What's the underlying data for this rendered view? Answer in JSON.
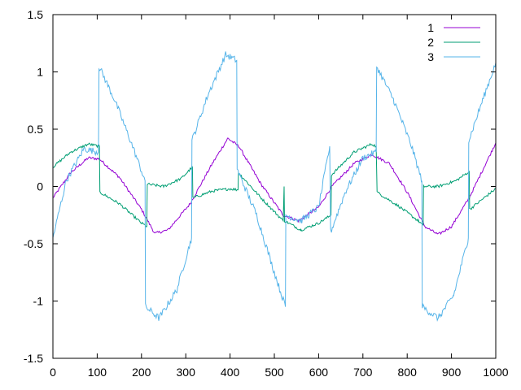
{
  "chart_data": {
    "type": "line",
    "xlim": [
      0,
      1000
    ],
    "ylim": [
      -1.5,
      1.5
    ],
    "x_ticks": [
      "0",
      "100",
      "200",
      "300",
      "400",
      "500",
      "600",
      "700",
      "800",
      "900",
      "1000"
    ],
    "y_ticks": [
      "-1.5",
      "-1",
      "-0.5",
      "0",
      "0.5",
      "1",
      "1.5"
    ],
    "x_tick_values": [
      0,
      100,
      200,
      300,
      400,
      500,
      600,
      700,
      800,
      900,
      1000
    ],
    "y_tick_values": [
      -1.5,
      -1,
      -0.5,
      0,
      0.5,
      1,
      1.5
    ],
    "grid": false,
    "legend_position": "top-right",
    "series": [
      {
        "name": "1",
        "color": "#9400d3",
        "points": [
          [
            0,
            -0.1
          ],
          [
            40,
            0.12
          ],
          [
            80,
            0.25
          ],
          [
            105,
            0.24
          ],
          [
            150,
            0.08
          ],
          [
            200,
            -0.2
          ],
          [
            230,
            -0.41
          ],
          [
            260,
            -0.38
          ],
          [
            310,
            -0.15
          ],
          [
            360,
            0.2
          ],
          [
            395,
            0.42
          ],
          [
            420,
            0.35
          ],
          [
            470,
            0.02
          ],
          [
            520,
            -0.25
          ],
          [
            555,
            -0.3
          ],
          [
            600,
            -0.18
          ],
          [
            630,
            0.0
          ],
          [
            680,
            0.2
          ],
          [
            720,
            0.28
          ],
          [
            760,
            0.2
          ],
          [
            800,
            -0.05
          ],
          [
            840,
            -0.35
          ],
          [
            870,
            -0.42
          ],
          [
            900,
            -0.35
          ],
          [
            940,
            -0.1
          ],
          [
            980,
            0.22
          ],
          [
            1000,
            0.38
          ]
        ]
      },
      {
        "name": "2",
        "color": "#009e73",
        "points": [
          [
            0,
            0.17
          ],
          [
            40,
            0.3
          ],
          [
            80,
            0.37
          ],
          [
            105,
            0.35
          ],
          [
            106,
            -0.05
          ],
          [
            150,
            -0.15
          ],
          [
            200,
            -0.32
          ],
          [
            212,
            -0.35
          ],
          [
            213,
            0.02
          ],
          [
            250,
            0.0
          ],
          [
            290,
            0.07
          ],
          [
            315,
            0.17
          ],
          [
            316,
            -0.1
          ],
          [
            360,
            -0.04
          ],
          [
            400,
            -0.02
          ],
          [
            418,
            -0.03
          ],
          [
            419,
            0.12
          ],
          [
            470,
            -0.1
          ],
          [
            520,
            -0.3
          ],
          [
            522,
            0.0
          ],
          [
            523,
            -0.3
          ],
          [
            560,
            -0.38
          ],
          [
            600,
            -0.32
          ],
          [
            628,
            -0.25
          ],
          [
            629,
            0.1
          ],
          [
            680,
            0.3
          ],
          [
            720,
            0.37
          ],
          [
            730,
            0.35
          ],
          [
            732,
            -0.05
          ],
          [
            780,
            -0.17
          ],
          [
            825,
            -0.3
          ],
          [
            836,
            -0.34
          ],
          [
            837,
            -0.0
          ],
          [
            870,
            0.0
          ],
          [
            910,
            0.05
          ],
          [
            940,
            0.13
          ],
          [
            941,
            -0.2
          ],
          [
            980,
            -0.08
          ],
          [
            1000,
            -0.02
          ]
        ]
      },
      {
        "name": "3",
        "color": "#56b4e9",
        "points": [
          [
            0,
            -0.45
          ],
          [
            30,
            0.05
          ],
          [
            70,
            0.33
          ],
          [
            103,
            0.3
          ],
          [
            104,
            1.05
          ],
          [
            140,
            0.75
          ],
          [
            180,
            0.35
          ],
          [
            208,
            0.05
          ],
          [
            209,
            -1.05
          ],
          [
            240,
            -1.15
          ],
          [
            280,
            -0.9
          ],
          [
            313,
            -0.45
          ],
          [
            314,
            0.4
          ],
          [
            350,
            0.8
          ],
          [
            390,
            1.15
          ],
          [
            415,
            1.1
          ],
          [
            416,
            0.15
          ],
          [
            460,
            -0.25
          ],
          [
            500,
            -0.75
          ],
          [
            525,
            -1.05
          ],
          [
            526,
            -0.25
          ],
          [
            560,
            -0.3
          ],
          [
            600,
            -0.18
          ],
          [
            625,
            0.35
          ],
          [
            627,
            -0.4
          ],
          [
            660,
            -0.05
          ],
          [
            700,
            0.25
          ],
          [
            730,
            0.3
          ],
          [
            731,
            1.05
          ],
          [
            770,
            0.75
          ],
          [
            810,
            0.35
          ],
          [
            833,
            0.05
          ],
          [
            834,
            -1.05
          ],
          [
            870,
            -1.15
          ],
          [
            905,
            -0.95
          ],
          [
            938,
            -0.45
          ],
          [
            939,
            0.4
          ],
          [
            970,
            0.75
          ],
          [
            1000,
            1.08
          ]
        ]
      }
    ]
  }
}
